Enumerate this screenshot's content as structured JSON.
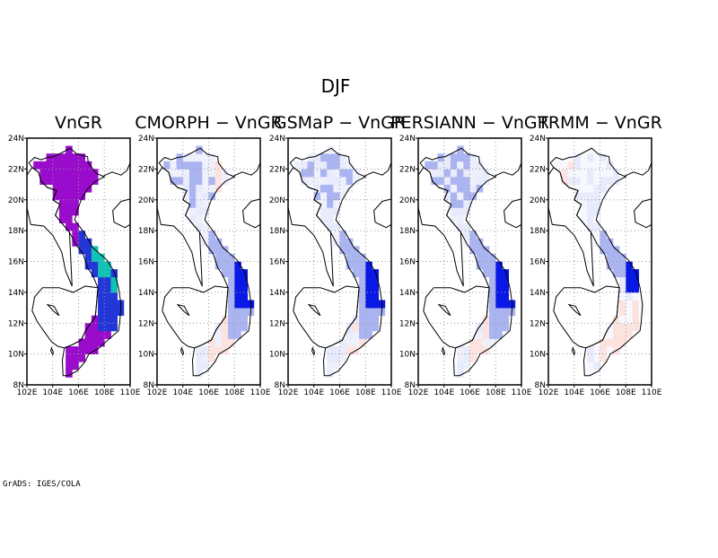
{
  "season_title": "DJF",
  "footer": "GrADS: IGES/COLA",
  "panels": [
    {
      "title": "VnGR",
      "scheme": "abs"
    },
    {
      "title": "CMORPH − VnGR",
      "scheme": "cmorph"
    },
    {
      "title": "GSMaP − VnGR",
      "scheme": "gsmap"
    },
    {
      "title": "PERSIANN − VnGR",
      "scheme": "persiann"
    },
    {
      "title": "TRMM − VnGR",
      "scheme": "trmm"
    }
  ],
  "axes": {
    "lon_range": [
      102,
      110
    ],
    "lat_range": [
      8,
      24
    ],
    "lon_ticks": [
      "102E",
      "104E",
      "106E",
      "108E",
      "110E"
    ],
    "lat_ticks": [
      "8N",
      "10N",
      "12N",
      "14N",
      "16N",
      "18N",
      "20N",
      "22N",
      "24N"
    ],
    "grid": "dotted"
  },
  "colors": {
    "abs_base": "#9a0ccc",
    "abs_blue": "#2436d8",
    "abs_cyan": "#11c2b6",
    "diff_neg_light": "#e8ebfb",
    "diff_neg_mid": "#aab4f0",
    "diff_neg_strong": "#0a18e6",
    "diff_pos_light": "#fde3df"
  }
}
